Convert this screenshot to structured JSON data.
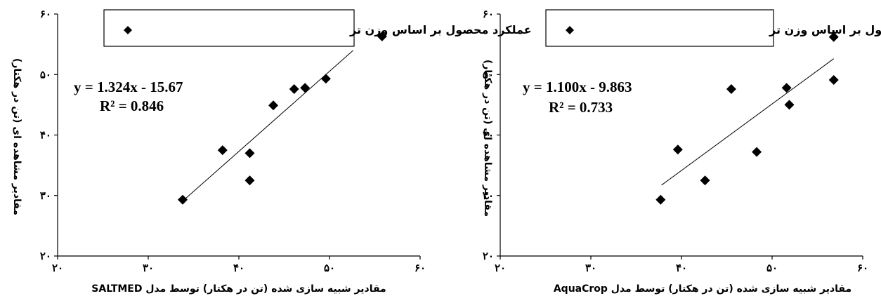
{
  "chart_data": [
    {
      "type": "scatter",
      "title": "",
      "xlabel": "مقادیر شبیه سازی شده (تن در هکتار) توسط مدل SALTMED",
      "ylabel": "مقادیر مشاهده ای (تن در هکتار)",
      "xlim": [
        20,
        60
      ],
      "ylim": [
        20,
        60
      ],
      "xticks": [
        "۲۰",
        "۳۰",
        "۴۰",
        "۵۰",
        "۶۰"
      ],
      "yticks": [
        "۲۰",
        "۳۰",
        "۴۰",
        "۵۰",
        "۶۰"
      ],
      "legend": {
        "label": "عملکرد محصول بر اساس وزن تر",
        "position": "top"
      },
      "equation": "y = 1.324x - 15.67",
      "r2": "R² = 0.846",
      "trendline": {
        "slope": 1.324,
        "intercept": -15.67,
        "x_range": [
          33.8,
          52.6
        ]
      },
      "points": [
        {
          "x": 33.8,
          "y": 29.3
        },
        {
          "x": 38.2,
          "y": 37.5
        },
        {
          "x": 41.2,
          "y": 37.0
        },
        {
          "x": 41.2,
          "y": 32.5
        },
        {
          "x": 43.8,
          "y": 44.9
        },
        {
          "x": 46.1,
          "y": 47.6
        },
        {
          "x": 47.3,
          "y": 47.8
        },
        {
          "x": 49.6,
          "y": 49.3
        },
        {
          "x": 55.8,
          "y": 56.3
        }
      ]
    },
    {
      "type": "scatter",
      "title": "",
      "xlabel": "مقادیر شبیه سازی شده (تن در هکتار) توسط مدل AquaCrop",
      "ylabel": "مقادیر مشاهده ای (تن در هکتار)",
      "xlim": [
        20,
        60
      ],
      "ylim": [
        20,
        60
      ],
      "xticks": [
        "۲۰",
        "۳۰",
        "۴۰",
        "۵۰",
        "۶۰"
      ],
      "yticks": [
        "۲۰",
        "۳۰",
        "۴۰",
        "۵۰",
        "۶۰"
      ],
      "legend": {
        "label": "عملکرد محصول بر اساس وزن تر",
        "position": "top"
      },
      "equation": "y = 1.100x - 9.863",
      "r2": "R² = 0.733",
      "trendline": {
        "slope": 1.1,
        "intercept": -9.863,
        "x_range": [
          37.8,
          56.8
        ]
      },
      "points": [
        {
          "x": 37.7,
          "y": 29.3
        },
        {
          "x": 39.6,
          "y": 37.6
        },
        {
          "x": 42.6,
          "y": 32.5
        },
        {
          "x": 45.5,
          "y": 47.6
        },
        {
          "x": 48.3,
          "y": 37.2
        },
        {
          "x": 51.6,
          "y": 47.8
        },
        {
          "x": 51.9,
          "y": 45.0
        },
        {
          "x": 56.8,
          "y": 56.2
        },
        {
          "x": 56.8,
          "y": 49.1
        }
      ]
    }
  ]
}
